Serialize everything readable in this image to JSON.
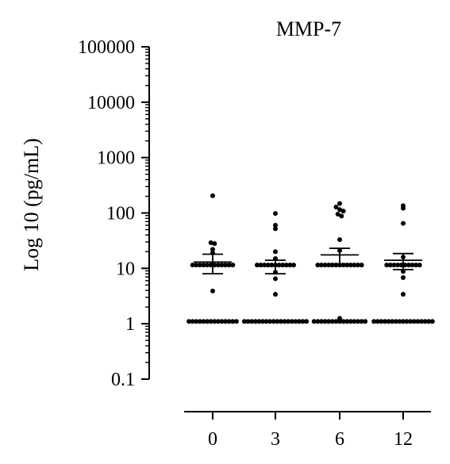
{
  "chart_data": {
    "type": "scatter",
    "title": "MMP-7",
    "ylabel": "Log 10 (pg/mL)",
    "xlabel": "",
    "y_scale": "log",
    "ylim": [
      0.1,
      100000
    ],
    "y_ticks": [
      0.1,
      1,
      10,
      100,
      1000,
      10000,
      100000
    ],
    "y_tick_labels": [
      "0.1",
      "1",
      "10",
      "100",
      "1000",
      "10000",
      "100000"
    ],
    "categories": [
      "0",
      "3",
      "6",
      "12"
    ],
    "color": "#000000",
    "groups": [
      {
        "category": "0",
        "points": [
          205,
          29,
          28,
          22,
          19,
          11.5,
          11.5,
          11.5,
          11.5,
          11.5,
          11.5,
          11.5,
          11.5,
          11.5,
          11.5,
          11.5,
          11.5,
          3.9,
          1.1,
          1.1,
          1.1,
          1.1,
          1.1,
          1.1,
          1.1,
          1.1,
          1.1,
          1.1,
          1.1,
          1.1,
          1.1,
          1.1
        ],
        "mean": 13,
        "error_bar": [
          8,
          18
        ]
      },
      {
        "category": "3",
        "points": [
          98,
          60,
          52,
          20,
          15,
          11.5,
          11.5,
          11.5,
          11.5,
          11.5,
          11.5,
          11.5,
          11.5,
          11.5,
          11.5,
          11.5,
          8.5,
          6.5,
          3.4,
          1.1,
          1.1,
          1.1,
          1.1,
          1.1,
          1.1,
          1.1,
          1.1,
          1.1,
          1.1,
          1.1,
          1.1,
          1.1,
          1.1,
          1.1,
          1.1,
          1.1,
          1.1
        ],
        "mean": 11,
        "error_bar": [
          8,
          14
        ]
      },
      {
        "category": "6",
        "points": [
          148,
          128,
          115,
          108,
          95,
          88,
          33,
          21,
          11.5,
          11.5,
          11.5,
          11.5,
          11.5,
          11.5,
          11.5,
          11.5,
          11.5,
          11.5,
          11.5,
          11.5,
          11.5,
          1.25,
          1.1,
          1.1,
          1.1,
          1.1,
          1.1,
          1.1,
          1.1,
          1.1,
          1.1,
          1.1,
          1.1,
          1.1,
          1.1,
          1.1,
          1.1
        ],
        "mean": 17.5,
        "error_bar": [
          12,
          23
        ]
      },
      {
        "category": "12",
        "points": [
          135,
          122,
          65,
          16,
          11.5,
          11.5,
          11.5,
          11.5,
          11.5,
          11.5,
          11.5,
          11.5,
          11.5,
          11.5,
          8.8,
          6.8,
          3.4,
          1.1,
          1.1,
          1.1,
          1.1,
          1.1,
          1.1,
          1.1,
          1.1,
          1.1,
          1.1,
          1.1,
          1.1,
          1.1,
          1.1,
          1.1,
          1.1,
          1.1
        ],
        "mean": 14,
        "error_bar": [
          9.5,
          18.5
        ]
      }
    ]
  }
}
